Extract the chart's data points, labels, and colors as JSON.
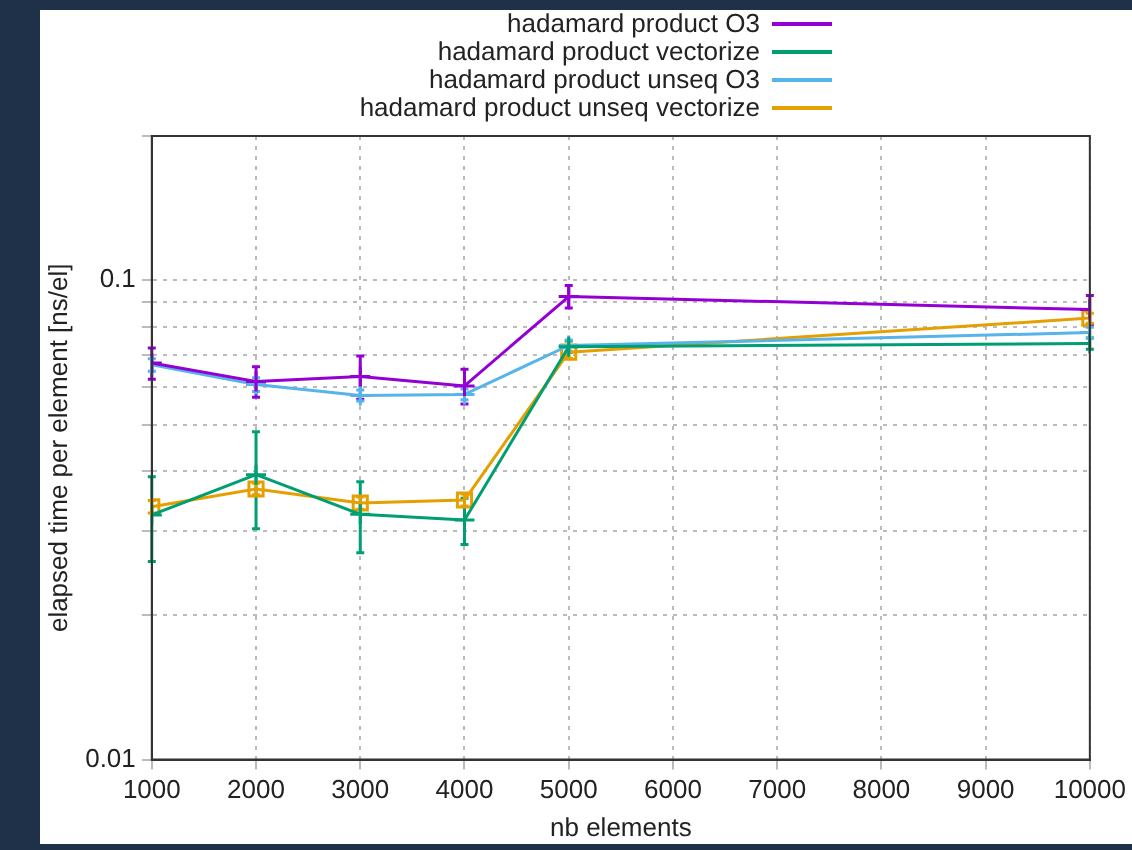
{
  "chart_data": {
    "type": "line",
    "xlabel": "nb elements",
    "ylabel": "elapsed time per element [ns/el]",
    "x": [
      1000,
      2000,
      3000,
      4000,
      5000,
      10000
    ],
    "series": [
      {
        "name": "hadamard product O3",
        "color": "#9400d3",
        "marker": "cross",
        "values": [
          0.0672,
          0.0615,
          0.063,
          0.0602,
          0.0925,
          0.0869
        ],
        "errors": [
          0.005,
          0.0045,
          0.0065,
          0.005,
          0.005,
          0.006
        ]
      },
      {
        "name": "hadamard product vectorize",
        "color": "#009e73",
        "marker": "cross",
        "values": [
          0.0324,
          0.0393,
          0.0325,
          0.0316,
          0.0727,
          0.0738
        ],
        "errors": [
          0.0065,
          0.009,
          0.0055,
          0.0035,
          0.002,
          0.002
        ]
      },
      {
        "name": "hadamard product unseq O3",
        "color": "#56b4e9",
        "marker": "cross",
        "values": [
          0.0666,
          0.0606,
          0.0575,
          0.0578,
          0.0731,
          0.0778
        ],
        "errors": [
          0.002,
          0.002,
          0.0015,
          0.0015,
          0.002,
          0.002
        ]
      },
      {
        "name": "hadamard product unseq vectorize",
        "color": "#e69f00",
        "marker": "square",
        "values": [
          0.0337,
          0.0367,
          0.0343,
          0.0348,
          0.0708,
          0.0834
        ],
        "errors": [
          0.001,
          0.001,
          0.001,
          0.001,
          0.002,
          0.002
        ]
      }
    ],
    "log": "y",
    "xlim": [
      1000,
      10000
    ],
    "ylim": [
      0.01,
      0.2
    ],
    "xticks": [
      1000,
      2000,
      3000,
      4000,
      5000,
      6000,
      7000,
      8000,
      9000,
      10000
    ],
    "yticks": [
      0.01,
      {
        "value": 0.02,
        "label": null
      },
      {
        "value": 0.03,
        "label": null
      },
      {
        "value": 0.04,
        "label": null
      },
      {
        "value": 0.05,
        "label": null
      },
      {
        "value": 0.06,
        "label": null
      },
      {
        "value": 0.07,
        "label": null
      },
      {
        "value": 0.08,
        "label": null
      },
      {
        "value": 0.09,
        "label": null
      },
      0.1,
      {
        "value": 0.2,
        "label": null
      }
    ],
    "grid": true,
    "legend": "top right"
  }
}
